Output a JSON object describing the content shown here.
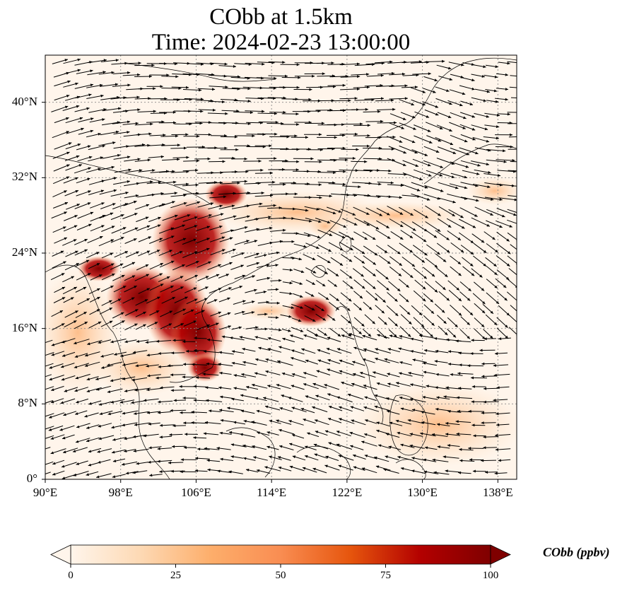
{
  "title": {
    "line1": "CObb at 1.5km",
    "line2": "Time: 2024-02-23 13:00:00"
  },
  "map": {
    "lon_range": [
      90,
      140
    ],
    "lat_range": [
      0,
      45
    ],
    "lat_ticks": [
      {
        "value": 0,
        "label": "0°"
      },
      {
        "value": 8,
        "label": "8°N"
      },
      {
        "value": 16,
        "label": "16°N"
      },
      {
        "value": 24,
        "label": "24°N"
      },
      {
        "value": 32,
        "label": "32°N"
      },
      {
        "value": 40,
        "label": "40°N"
      }
    ],
    "lon_ticks": [
      {
        "value": 90,
        "label": "90°E"
      },
      {
        "value": 98,
        "label": "98°E"
      },
      {
        "value": 106,
        "label": "106°E"
      },
      {
        "value": 114,
        "label": "114°E"
      },
      {
        "value": 122,
        "label": "122°E"
      },
      {
        "value": 130,
        "label": "130°E"
      },
      {
        "value": 138,
        "label": "138°E"
      }
    ],
    "gridlines": "dotted",
    "background_color": "#fff5eb",
    "colors": {
      "low": "#fdd9b4",
      "mid": "#f98d52",
      "high": "#d94701",
      "very_high": "#7f0000",
      "vector": "#000000",
      "coastline": "#000000"
    }
  },
  "colorbar": {
    "label": "CObb (ppbv)",
    "min": 0,
    "max": 100,
    "ticks": [
      {
        "value": 0,
        "label": "0"
      },
      {
        "value": 25,
        "label": "25"
      },
      {
        "value": 50,
        "label": "50"
      },
      {
        "value": 75,
        "label": "75"
      },
      {
        "value": 100,
        "label": "100"
      }
    ],
    "extend": "both",
    "colormap": [
      "#fff5eb",
      "#fdd9b4",
      "#fdae6b",
      "#f98d52",
      "#e6550d",
      "#b30000",
      "#7f0000"
    ]
  }
}
